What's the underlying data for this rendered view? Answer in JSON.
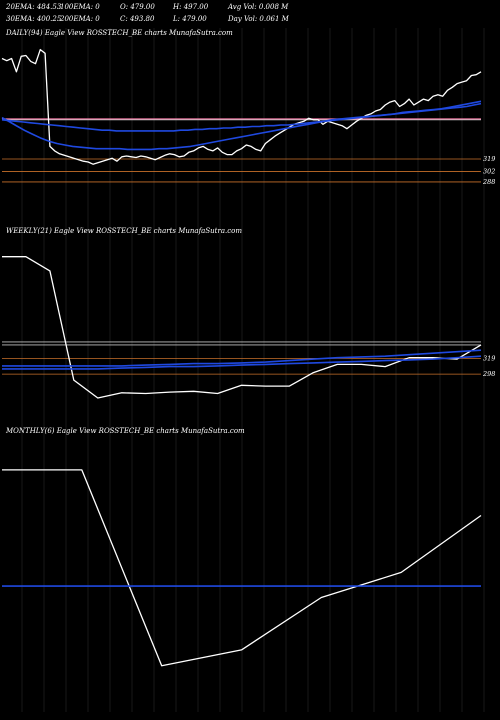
{
  "header": {
    "row1": [
      "20EMA: 484.53",
      "100EMA: 0",
      "O: 479.00",
      "H: 497.00",
      "Avg Vol: 0.008  M"
    ],
    "row2": [
      "30EMA: 400.25",
      "200EMA: 0",
      "C: 493.80",
      "L: 479.00",
      "Day Vol: 0.061 M"
    ]
  },
  "colors": {
    "price": "#ffffff",
    "ema_blue": "#1f49e0",
    "level_pink": "#ff7fae",
    "level_orange": "#c8702a",
    "level_grey": "#bfbfbf",
    "grid_vertical": "#2a2a2a"
  },
  "chart_data": [
    {
      "type": "line",
      "title": "DAILY(94) Eagle   View  ROSSTECH_BE charts MunafaSutra.com",
      "tick_labels": [
        "319",
        "302",
        "288"
      ],
      "series": [
        {
          "role": "price",
          "values": [
            455,
            452,
            455,
            437,
            458,
            459,
            451,
            448,
            467,
            462,
            336,
            330,
            326,
            324,
            322,
            320,
            318,
            316,
            315,
            312,
            314,
            316,
            318,
            320,
            316,
            322,
            323,
            322,
            321,
            323,
            322,
            320,
            318,
            321,
            324,
            326,
            325,
            322,
            323,
            328,
            330,
            334,
            336,
            332,
            330,
            334,
            328,
            325,
            325,
            330,
            333,
            338,
            336,
            332,
            330,
            340,
            345,
            350,
            354,
            358,
            362,
            366,
            368,
            370,
            374,
            372,
            372,
            366,
            370,
            368,
            366,
            364,
            360,
            365,
            370,
            374,
            378,
            380,
            384,
            386,
            392,
            396,
            398,
            390,
            394,
            400,
            392,
            396,
            400,
            398,
            404,
            406,
            404,
            412,
            416,
            421,
            423,
            425,
            432,
            433,
            437
          ]
        },
        {
          "role": "ema",
          "values": [
            375,
            369,
            363,
            357,
            352,
            347,
            343,
            340,
            338,
            336,
            335,
            334,
            333,
            333,
            333,
            333,
            332,
            332,
            332,
            332,
            333,
            333,
            334,
            335,
            336,
            338,
            340,
            342,
            344,
            346,
            348,
            350,
            352,
            354,
            356,
            358,
            360,
            362,
            364,
            366,
            368,
            370,
            372,
            373,
            374,
            375,
            376,
            377,
            378,
            379,
            380,
            382,
            383,
            384,
            385,
            386,
            387,
            389,
            391,
            393,
            395,
            397
          ]
        },
        {
          "role": "ema",
          "values": [
            372,
            371,
            370,
            369,
            368,
            367,
            366,
            365,
            364,
            363,
            362,
            361,
            360,
            359,
            358,
            358,
            357,
            357,
            357,
            357,
            357,
            357,
            357,
            357,
            357,
            358,
            358,
            359,
            359,
            360,
            360,
            361,
            361,
            362,
            362,
            363,
            363,
            364,
            364,
            365,
            365,
            366,
            367,
            368,
            369,
            370,
            371,
            372,
            373,
            374,
            375,
            376,
            377,
            378,
            379,
            380,
            381,
            382,
            383,
            384,
            385,
            386,
            387,
            388,
            389,
            390,
            392,
            394
          ]
        }
      ],
      "levels": [
        {
          "value": 373,
          "color": "level_pink"
        },
        {
          "value": 319,
          "color": "level_orange"
        },
        {
          "value": 302,
          "color": "level_orange"
        },
        {
          "value": 288,
          "color": "level_orange"
        },
        {
          "value": 372,
          "color": "level_grey"
        }
      ]
    },
    {
      "type": "line",
      "title": "WEEKLY(21) Eagle   View  ROSSTECH_BE charts MunafaSutra.com",
      "tick_labels": [
        "319",
        "298"
      ],
      "series": [
        {
          "role": "price",
          "values": [
            455,
            455,
            436,
            290,
            266,
            273,
            272,
            274,
            275,
            272,
            283,
            282,
            282,
            300,
            311,
            311,
            308,
            320,
            320,
            318,
            337
          ]
        },
        {
          "role": "ema",
          "values": [
            309,
            309,
            309,
            309,
            309,
            309,
            310,
            311,
            312,
            312,
            313,
            314,
            316,
            318,
            320,
            321,
            322,
            324,
            326,
            328,
            330
          ]
        },
        {
          "role": "ema",
          "values": [
            305,
            305,
            305,
            305,
            305,
            306,
            307,
            308,
            308,
            309,
            310,
            311,
            312,
            313,
            314,
            315,
            316,
            317,
            318,
            320,
            322
          ]
        }
      ],
      "levels": [
        {
          "value": 319,
          "color": "level_orange"
        },
        {
          "value": 298,
          "color": "level_orange"
        },
        {
          "value": 341,
          "color": "level_grey"
        },
        {
          "value": 337,
          "color": "level_grey"
        }
      ]
    },
    {
      "type": "line",
      "title": "MONTHLY(6) Eagle   View  ROSSTECH_BE charts MunafaSutra.com",
      "series": [
        {
          "role": "price",
          "values": [
            452,
            452,
            280,
            294,
            340,
            362,
            412
          ]
        },
        {
          "role": "ema",
          "values": [
            350,
            350,
            350,
            350,
            350,
            350,
            350
          ]
        }
      ],
      "levels": []
    }
  ]
}
